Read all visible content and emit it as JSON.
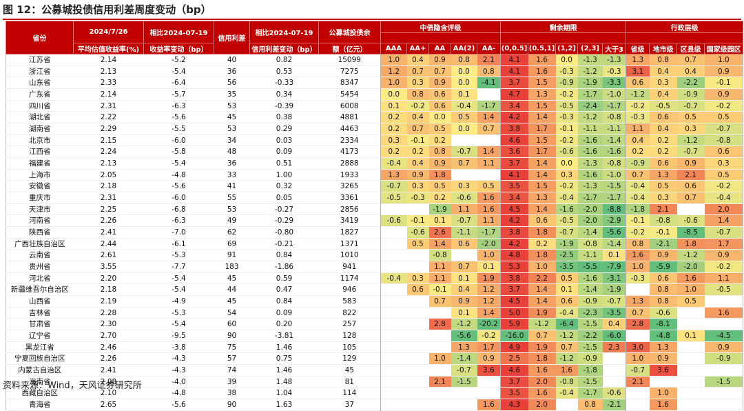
{
  "title": "图 12：公募城投债信用利差周度变动（bp）",
  "source": "资料来源：Wind，天风证券研究所",
  "headers": {
    "province": "省份",
    "avg_yield_line1": "2024/7/26",
    "avg_yield_line2": "平均估值收益率(%)",
    "yield_chg_line1": "相比2024-07-19",
    "yield_chg_line2": "收益率变动（bp）",
    "spread": "信用利差",
    "spread_chg_line1": "相比2024-07-19",
    "spread_chg_line2": "信用利差变动（bp）",
    "balance_line1": "公募城投债余",
    "balance_line2": "额（亿元）",
    "group_rating": "中债隐含评级",
    "group_term": "剩余期限",
    "group_admin": "行政层级",
    "sub": [
      "AAA",
      "AA+",
      "AA",
      "AA(2)",
      "AA-",
      "(0,0.5]",
      "(0.5,1]",
      "(1,2]",
      "(2,3]",
      "大于3",
      "省级",
      "地市级",
      "区县级",
      "国家级园区"
    ]
  },
  "rows": [
    [
      "江苏省",
      "2.14",
      "-5.2",
      "40",
      "0.82",
      "15099",
      "1.0",
      "0.4",
      "0.9",
      "0.8",
      "2.1",
      "4.1",
      "1.6",
      "0.0",
      "-1.3",
      "-1.3",
      "1.3",
      "0.8",
      "0.7",
      "1.0"
    ],
    [
      "浙江省",
      "2.13",
      "-5.4",
      "36",
      "0.53",
      "7275",
      "1.2",
      "0.7",
      "0.7",
      "0.0",
      "0.8",
      "4.1",
      "1.6",
      "-0.3",
      "-1.2",
      "-0.3",
      "3.1",
      "0.4",
      "0.4",
      "0.9"
    ],
    [
      "山东省",
      "2.33",
      "-6.4",
      "56",
      "-0.33",
      "8347",
      "1.0",
      "0.3",
      "0.9",
      "0.0",
      "-4.1",
      "3.7",
      "1.5",
      "-0.9",
      "-1.9",
      "-3.3",
      "0.6",
      "0.3",
      "-2.2",
      "-0.1"
    ],
    [
      "广东省",
      "2.14",
      "-5.7",
      "35",
      "0.34",
      "5454",
      "0.0",
      "0.8",
      "0.6",
      "0.1",
      "",
      "4.7",
      "1.3",
      "-0.2",
      "-1.7",
      "-1.0",
      "-1.2",
      "0.4",
      "-0.9",
      "0.9"
    ],
    [
      "四川省",
      "2.31",
      "-6.3",
      "53",
      "-0.39",
      "6008",
      "0.1",
      "-0.2",
      "0.6",
      "-0.4",
      "-1.7",
      "3.4",
      "1.5",
      "-0.5",
      "-2.4",
      "-1.7",
      "-0.2",
      "-0.5",
      "-0.7",
      "-0.2"
    ],
    [
      "湖北省",
      "2.22",
      "-5.6",
      "45",
      "0.38",
      "4881",
      "0.2",
      "0.4",
      "0.0",
      "0.5",
      "1.4",
      "4.2",
      "1.4",
      "-0.3",
      "-1.2",
      "-0.8",
      "-0.3",
      "0.6",
      "0.5",
      "0.5"
    ],
    [
      "湖南省",
      "2.29",
      "-5.5",
      "53",
      "0.29",
      "4463",
      "0.2",
      "0.7",
      "0.5",
      "0.0",
      "0.7",
      "3.8",
      "1.7",
      "-0.1",
      "-1.1",
      "-1.1",
      "1.1",
      "0.4",
      "0.3",
      "-0.7"
    ],
    [
      "北京市",
      "2.15",
      "-6.0",
      "34",
      "0.03",
      "2334",
      "0.3",
      "-0.1",
      "0.2",
      "",
      "",
      "4.6",
      "1.5",
      "-0.2",
      "-1.6",
      "-1.4",
      "0.4",
      "0.2",
      "-1.2",
      "-0.8"
    ],
    [
      "江西省",
      "2.24",
      "-5.8",
      "48",
      "0.09",
      "4173",
      "0.2",
      "0.2",
      "0.8",
      "-0.7",
      "1.4",
      "3.6",
      "1.7",
      "-0.6",
      "-1.6",
      "-1.6",
      "0.2",
      "0.2",
      "-0.7",
      "0.6"
    ],
    [
      "福建省",
      "2.13",
      "-5.4",
      "36",
      "0.51",
      "2888",
      "-0.4",
      "0.4",
      "0.9",
      "0.7",
      "1.1",
      "3.7",
      "1.4",
      "0.0",
      "-1.3",
      "-0.8",
      "-0.9",
      "0.6",
      "0.9",
      "0.3"
    ],
    [
      "上海市",
      "2.05",
      "-4.8",
      "33",
      "1.00",
      "1933",
      "1.3",
      "0.9",
      "1.8",
      "",
      "",
      "4.1",
      "1.4",
      "0.3",
      "-1.6",
      "-1.0",
      "0.7",
      "1.3",
      "2.1",
      "0.5"
    ],
    [
      "安徽省",
      "2.18",
      "-5.6",
      "41",
      "0.32",
      "3265",
      "-0.7",
      "0.3",
      "0.5",
      "0.3",
      "0.5",
      "3.5",
      "1.5",
      "-0.2",
      "-1.3",
      "-1.5",
      "-0.4",
      "0.5",
      "0.6",
      "-0.2"
    ],
    [
      "重庆市",
      "2.31",
      "-6.0",
      "55",
      "0.05",
      "3361",
      "-0.5",
      "-0.3",
      "0.2",
      "-0.6",
      "1.6",
      "3.4",
      "1.3",
      "-0.4",
      "-1.7",
      "-1.7",
      "-0.4",
      "0.3",
      "0.7",
      "-0.4"
    ],
    [
      "天津市",
      "2.25",
      "-6.8",
      "53",
      "-0.27",
      "2856",
      "",
      "",
      "-1.9",
      "1.1",
      "1.6",
      "4.5",
      "1.4",
      "-1.6",
      "-2.0",
      "-8.8",
      "-1.8",
      "2.1",
      "",
      "2.0"
    ],
    [
      "河南省",
      "2.26",
      "-6.3",
      "49",
      "-0.29",
      "3419",
      "-0.6",
      "-0.1",
      "0.1",
      "-0.7",
      "1.1",
      "4.2",
      "0.6",
      "-0.5",
      "-2.0",
      "-2.9",
      "-0.1",
      "-0.8",
      "-0.6",
      "1.4"
    ],
    [
      "陕西省",
      "2.41",
      "-7.0",
      "62",
      "-0.80",
      "1827",
      "",
      "-0.6",
      "2.6",
      "-1.1",
      "-1.7",
      "3.8",
      "1.8",
      "-0.7",
      "-1.4",
      "-5.6",
      "-0.2",
      "-0.1",
      "-8.5",
      "-0.7"
    ],
    [
      "广西壮族自治区",
      "2.44",
      "-6.1",
      "69",
      "-0.21",
      "1371",
      "",
      "0.5",
      "1.4",
      "0.6",
      "-2.0",
      "4.2",
      "0.2",
      "-1.9",
      "-0.8",
      "-1.4",
      "0.8",
      "-2.1",
      "1.8",
      "1.7"
    ],
    [
      "云南省",
      "2.61",
      "-5.3",
      "91",
      "0.84",
      "1010",
      "",
      "",
      "-0.8",
      "",
      "1.0",
      "4.8",
      "1.8",
      "-2.5",
      "-1.1",
      "0.1",
      "1.6",
      "0.9",
      "-1.2",
      "0.9"
    ],
    [
      "贵州省",
      "3.55",
      "-7.7",
      "183",
      "-1.86",
      "941",
      "",
      "",
      "1.1",
      "0.7",
      "0.1",
      "5.3",
      "1.0",
      "-3.5",
      "-5.5",
      "-7.9",
      "1.0",
      "-5.9",
      "-2.0",
      "-0.2"
    ],
    [
      "河北省",
      "2.20",
      "-5.4",
      "45",
      "0.59",
      "1174",
      "-0.4",
      "0.3",
      "1.1",
      "0.1",
      "1.9",
      "3.8",
      "2.2",
      "0.5",
      "-1.6",
      "-3.1",
      "-0.3",
      "0.6",
      "1.6",
      "1.1"
    ],
    [
      "新疆维吾尔自治区",
      "2.18",
      "-5.4",
      "44",
      "0.47",
      "946",
      "",
      "0.6",
      "-0.1",
      "0.4",
      "1.2",
      "3.7",
      "1.4",
      "0.1",
      "-1.4",
      "-1.9",
      "",
      "0.8",
      "1.0",
      "-0.5"
    ],
    [
      "山西省",
      "2.19",
      "-4.9",
      "45",
      "0.84",
      "583",
      "",
      "",
      "0.7",
      "0.9",
      "1.2",
      "4.5",
      "1.4",
      "0.6",
      "-0.9",
      "-0.7",
      "1.3",
      "0.8",
      "0.5",
      ""
    ],
    [
      "吉林省",
      "2.28",
      "-5.3",
      "54",
      "0.09",
      "822",
      "",
      "",
      "",
      "0.1",
      "1.4",
      "5.0",
      "1.9",
      "-0.4",
      "-2.3",
      "-3.5",
      "0.7",
      "-0.6",
      "",
      "1.6"
    ],
    [
      "甘肃省",
      "2.30",
      "-5.4",
      "60",
      "0.20",
      "257",
      "",
      "",
      "2.8",
      "-1.2",
      "-20.2",
      "5.9",
      "-1.2",
      "-6.4",
      "-1.5",
      "0.4",
      "2.8",
      "-8.1",
      "",
      ""
    ],
    [
      "辽宁省",
      "2.70",
      "-9.5",
      "90",
      "-3.81",
      "128",
      "",
      "",
      "",
      "-5.6",
      "-0.2",
      "-16.0",
      "0.7",
      "-1.2",
      "-2.2",
      "-6.0",
      "",
      "-4.8",
      "0.1",
      "-4.5"
    ],
    [
      "黑龙江省",
      "2.46",
      "-3.8",
      "75",
      "1.46",
      "105",
      "",
      "",
      "",
      "1.3",
      "1.7",
      "4.9",
      "1.9",
      "0.7",
      "-1.5",
      "2.3",
      "3.0",
      "1.3",
      "",
      "0.9"
    ],
    [
      "宁夏回族自治区",
      "2.26",
      "-4.3",
      "57",
      "0.75",
      "129",
      "",
      "",
      "1.0",
      "-1.4",
      "0.9",
      "2.5",
      "1.8",
      "-1.2",
      "-0.9",
      "",
      "1.0",
      "0.9",
      "",
      "-0.9"
    ],
    [
      "内蒙古自治区",
      "2.41",
      "-4.3",
      "74",
      "1.46",
      "45",
      "",
      "",
      "",
      "-0.7",
      "3.6",
      "4.6",
      "1.6",
      "1.6",
      "-1.8",
      "",
      "-0.7",
      "3.6",
      "",
      ""
    ],
    [
      "海南省",
      "2.08",
      "-4.0",
      "39",
      "1.48",
      "81",
      "",
      "",
      "2.1",
      "-1.5",
      "",
      "3.7",
      "2.0",
      "-0.8",
      "-1.5",
      "",
      "2.1",
      "",
      "",
      "-1.5"
    ],
    [
      "西藏自治区",
      "2.10",
      "-4.8",
      "38",
      "1.04",
      "114",
      "",
      "",
      "",
      "",
      "",
      "3.5",
      "1.6",
      "-0.4",
      "-1.7",
      "-0.6",
      "",
      "1.0",
      "",
      ""
    ],
    [
      "青海省",
      "2.65",
      "-5.6",
      "90",
      "1.63",
      "37",
      "",
      "",
      "",
      "",
      "1.6",
      "4.3",
      "2.0",
      "",
      "0.8",
      "-2.1",
      "",
      "1.6",
      "",
      ""
    ]
  ],
  "colors": {
    "header": "#c00000",
    "scale_max": "#e8413a",
    "scale_mid": "#ffeb84",
    "scale_min": "#63be7b"
  }
}
